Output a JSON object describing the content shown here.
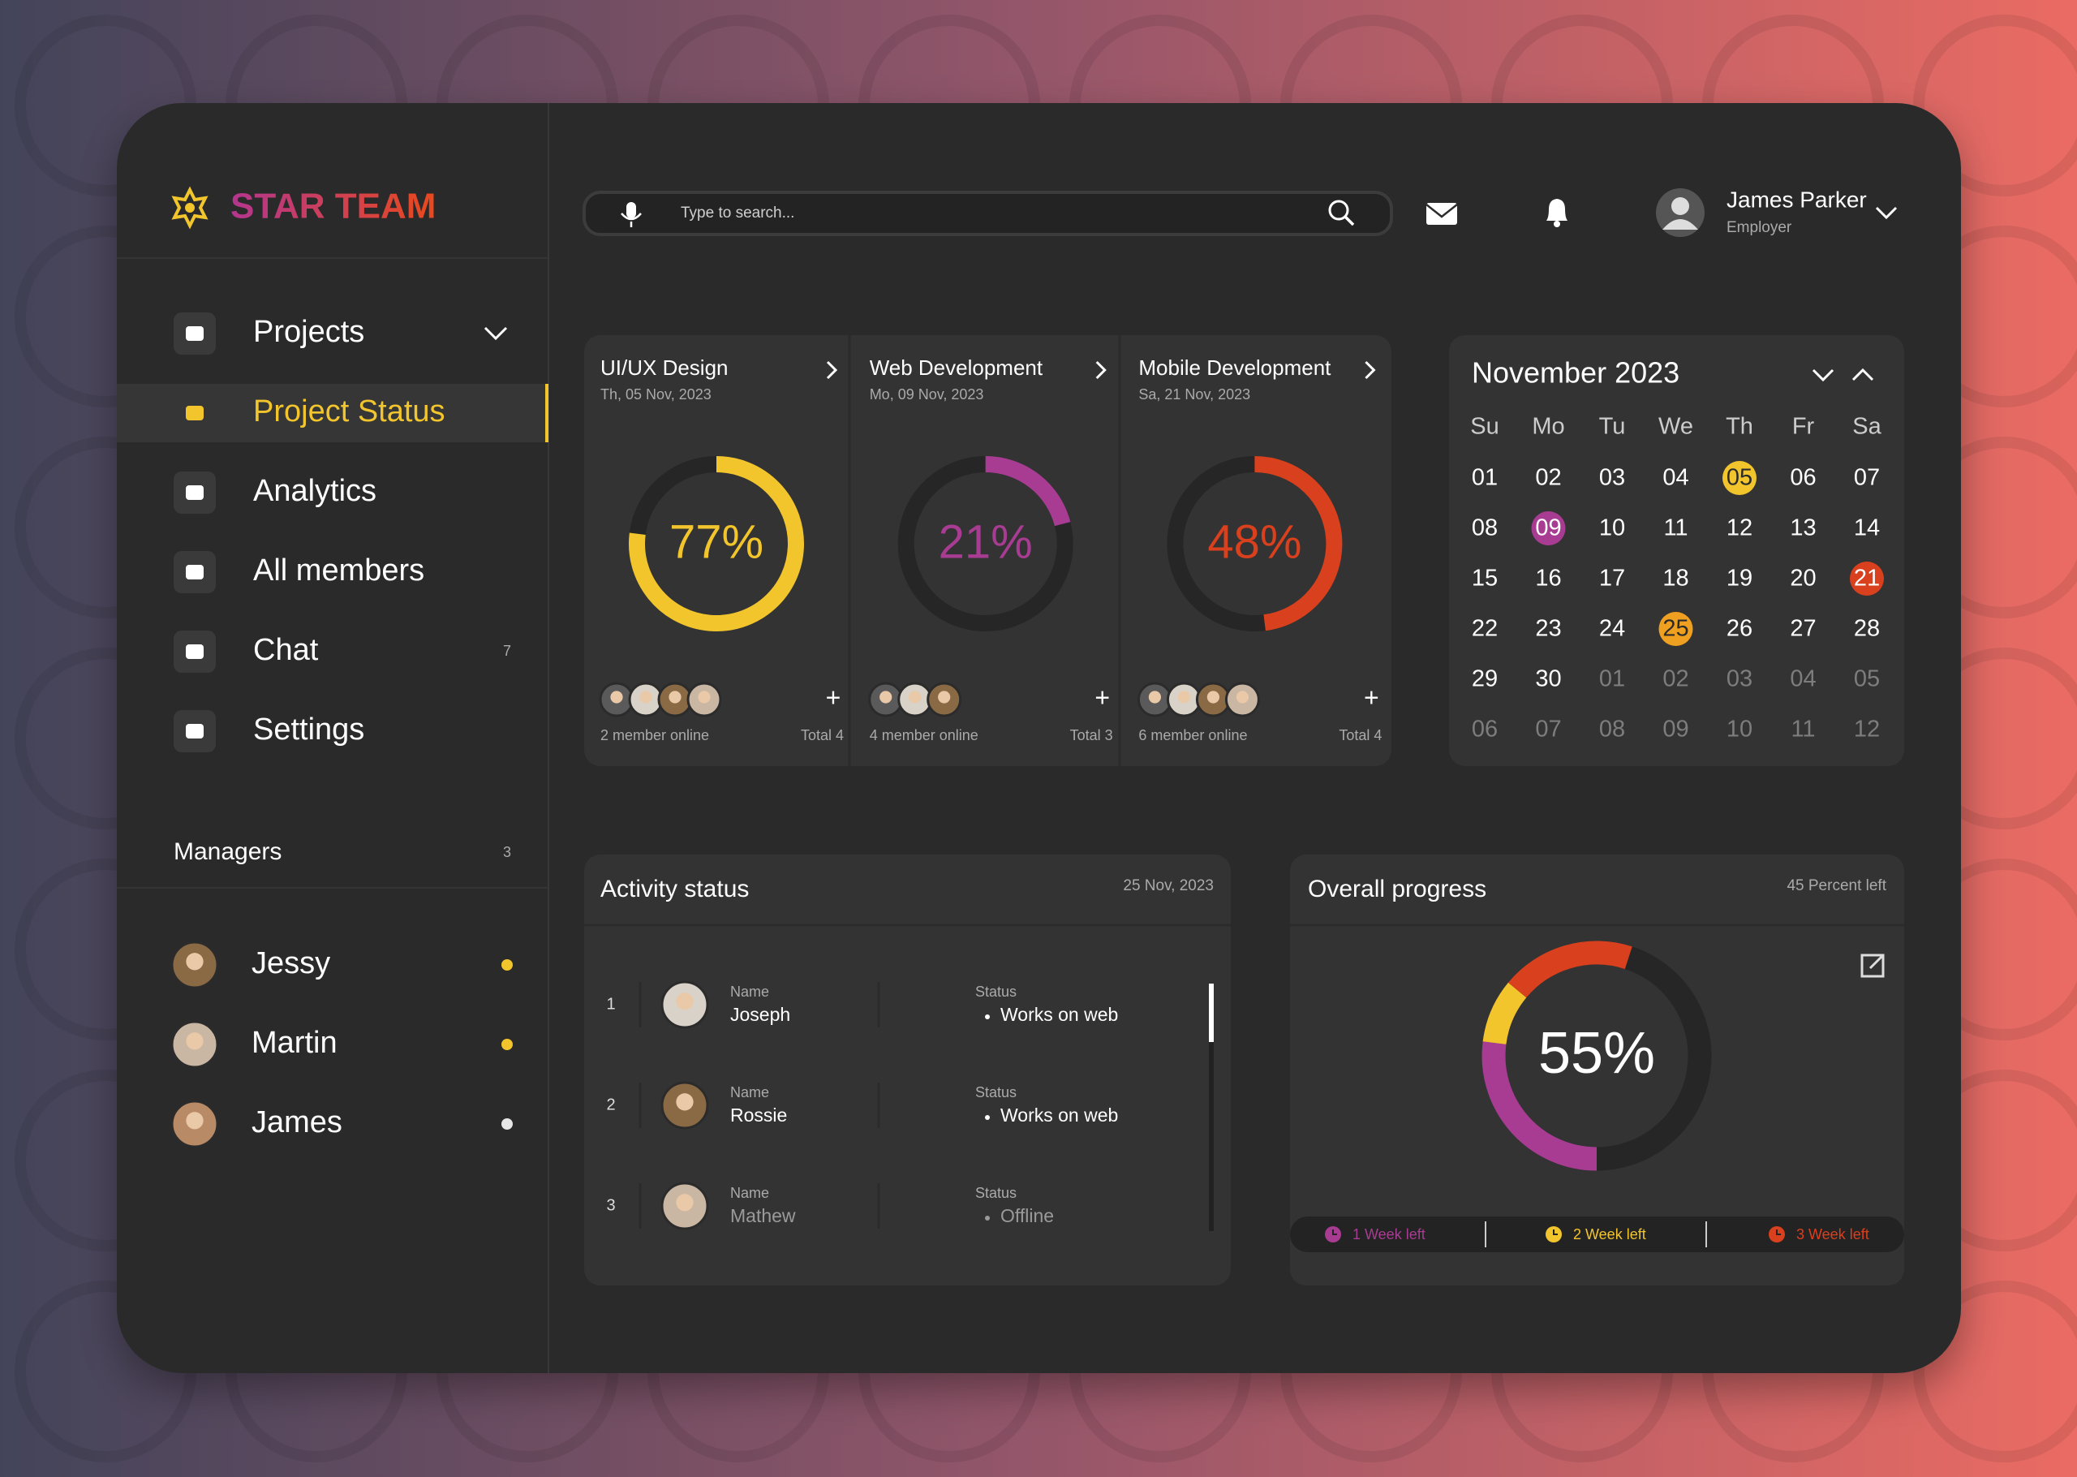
{
  "brand": {
    "name": "STAR TEAM"
  },
  "nav": [
    {
      "label": "Projects"
    },
    {
      "label": "Project Status",
      "active": true
    },
    {
      "label": "Analytics"
    },
    {
      "label": "All members"
    },
    {
      "label": "Chat",
      "count": 7
    },
    {
      "label": "Settings"
    }
  ],
  "managers": {
    "title": "Managers",
    "count": 3,
    "people": [
      {
        "name": "Jessy",
        "status_color": "#f2c52d"
      },
      {
        "name": "Martin",
        "status_color": "#f2c52d"
      },
      {
        "name": "James",
        "status_color": "#e6e6e6"
      }
    ]
  },
  "search": {
    "placeholder": "Type to search..."
  },
  "user": {
    "name": "James Parker",
    "role": "Employer"
  },
  "projects": [
    {
      "title": "UI/UX Design",
      "date": "Th, 05 Nov, 2023",
      "progress": {
        "value": 77,
        "label": "77%"
      },
      "color": "#f2c52d",
      "online": "2 member online",
      "total": {
        "value": 4,
        "label": "Total 4"
      }
    },
    {
      "title": "Web Development",
      "date": "Mo, 09 Nov, 2023",
      "progress": {
        "value": 21,
        "label": "21%"
      },
      "color": "#a83c93",
      "online": "4 member online",
      "total": {
        "value": 3,
        "label": "Total 3"
      }
    },
    {
      "title": "Mobile Development",
      "date": "Sa, 21 Nov, 2023",
      "progress": {
        "value": 48,
        "label": "48%"
      },
      "color": "#d9401d",
      "online": "6 member online",
      "total": {
        "value": 4,
        "label": "Total 4"
      }
    }
  ],
  "calendar": {
    "title": "November 2023",
    "weekdays": [
      "Su",
      "Mo",
      "Tu",
      "We",
      "Th",
      "Fr",
      "Sa"
    ],
    "weeks": [
      [
        "01",
        "02",
        "03",
        "04",
        {
          "d": "05",
          "color": "#f2c52d",
          "text_color": "#2b2b2b"
        },
        "06",
        "07"
      ],
      [
        "08",
        {
          "d": "09",
          "color": "#a83c93",
          "text_color": "#ffffff"
        },
        "10",
        "11",
        "12",
        "13",
        "14"
      ],
      [
        "15",
        "16",
        "17",
        "18",
        "19",
        "20",
        {
          "d": "21",
          "color": "#d9401d",
          "text_color": "#ffffff"
        }
      ],
      [
        "22",
        "23",
        "24",
        {
          "d": "25",
          "color": "#f0a020",
          "text_color": "#2b2b2b"
        },
        "26",
        "27",
        "28"
      ],
      [
        "29",
        "30",
        {
          "d": "01",
          "muted": true
        },
        {
          "d": "02",
          "muted": true
        },
        {
          "d": "03",
          "muted": true
        },
        {
          "d": "04",
          "muted": true
        },
        {
          "d": "05",
          "muted": true
        }
      ],
      [
        {
          "d": "06",
          "muted": true
        },
        {
          "d": "07",
          "muted": true
        },
        {
          "d": "08",
          "muted": true
        },
        {
          "d": "09",
          "muted": true
        },
        {
          "d": "10",
          "muted": true
        },
        {
          "d": "11",
          "muted": true
        },
        {
          "d": "12",
          "muted": true
        }
      ]
    ]
  },
  "activity": {
    "title": "Activity status",
    "date": "25 Nov, 2023",
    "rows": [
      {
        "index": 1,
        "name_label": "Name",
        "name": "Joseph",
        "status_label": "Status",
        "status": "Works on web",
        "text_color": "#ffffff"
      },
      {
        "index": 2,
        "name_label": "Name",
        "name": "Rossie",
        "status_label": "Status",
        "status": "Works on web",
        "text_color": "#ffffff"
      },
      {
        "index": 3,
        "name_label": "Name",
        "name": "Mathew",
        "status_label": "Status",
        "status": "Offline",
        "text_color": "#9a9a9a"
      }
    ]
  },
  "overall": {
    "title": "Overall progress",
    "remaining": "45 Percent left",
    "total": {
      "value": 55,
      "label": "55%"
    },
    "segments": [
      {
        "label": "1 Week left",
        "color": "#a83c93",
        "value": 27
      },
      {
        "label": "2 Week left",
        "color": "#f2c52d",
        "value": 9
      },
      {
        "label": "3 Week left",
        "color": "#d9401d",
        "value": 19
      }
    ]
  }
}
